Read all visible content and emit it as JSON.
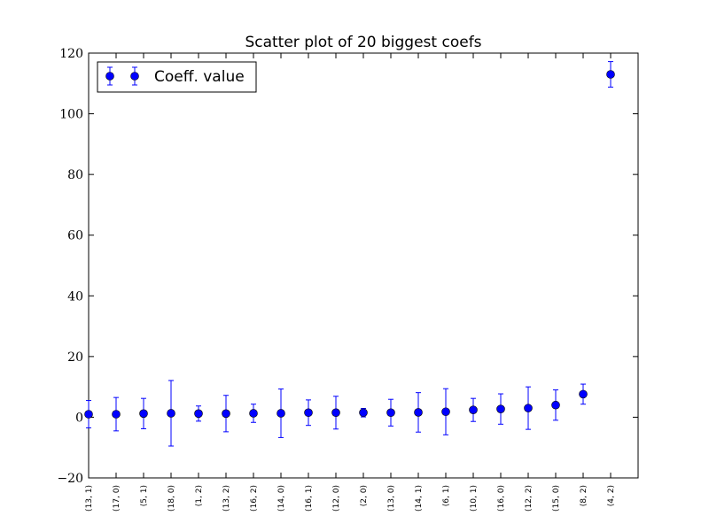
{
  "chart_data": {
    "type": "scatter",
    "title": "Scatter plot of 20 biggest coefs",
    "xlabel": "",
    "ylabel": "",
    "ylim": [
      -20,
      120
    ],
    "yticks": [
      -20,
      0,
      20,
      40,
      60,
      80,
      100,
      120
    ],
    "ytick_labels": [
      "−20",
      "0",
      "20",
      "40",
      "60",
      "80",
      "100",
      "120"
    ],
    "categories": [
      "(13, 1)",
      "(17, 0)",
      "(5, 1)",
      "(18, 0)",
      "(1, 2)",
      "(13, 2)",
      "(16, 2)",
      "(14, 0)",
      "(16, 1)",
      "(12, 0)",
      "(2, 0)",
      "(13, 0)",
      "(14, 1)",
      "(6, 1)",
      "(10, 1)",
      "(16, 0)",
      "(12, 2)",
      "(15, 0)",
      "(8, 2)",
      "(4, 2)"
    ],
    "series": [
      {
        "name": "Coeff. value",
        "color": "#0000ff",
        "marker": "circle",
        "values": [
          1.0,
          1.0,
          1.2,
          1.3,
          1.2,
          1.2,
          1.3,
          1.3,
          1.5,
          1.5,
          1.5,
          1.5,
          1.6,
          1.8,
          2.4,
          2.7,
          3.0,
          4.0,
          7.6,
          113.0
        ],
        "errors": [
          4.5,
          5.5,
          5.0,
          10.8,
          2.5,
          6.0,
          3.0,
          8.0,
          4.2,
          5.4,
          1.4,
          4.4,
          6.5,
          7.6,
          3.8,
          5.0,
          7.0,
          5.0,
          3.3,
          4.2
        ]
      }
    ],
    "legend": {
      "location": "upper left",
      "entries": [
        "Coeff. value"
      ]
    },
    "grid": false
  }
}
